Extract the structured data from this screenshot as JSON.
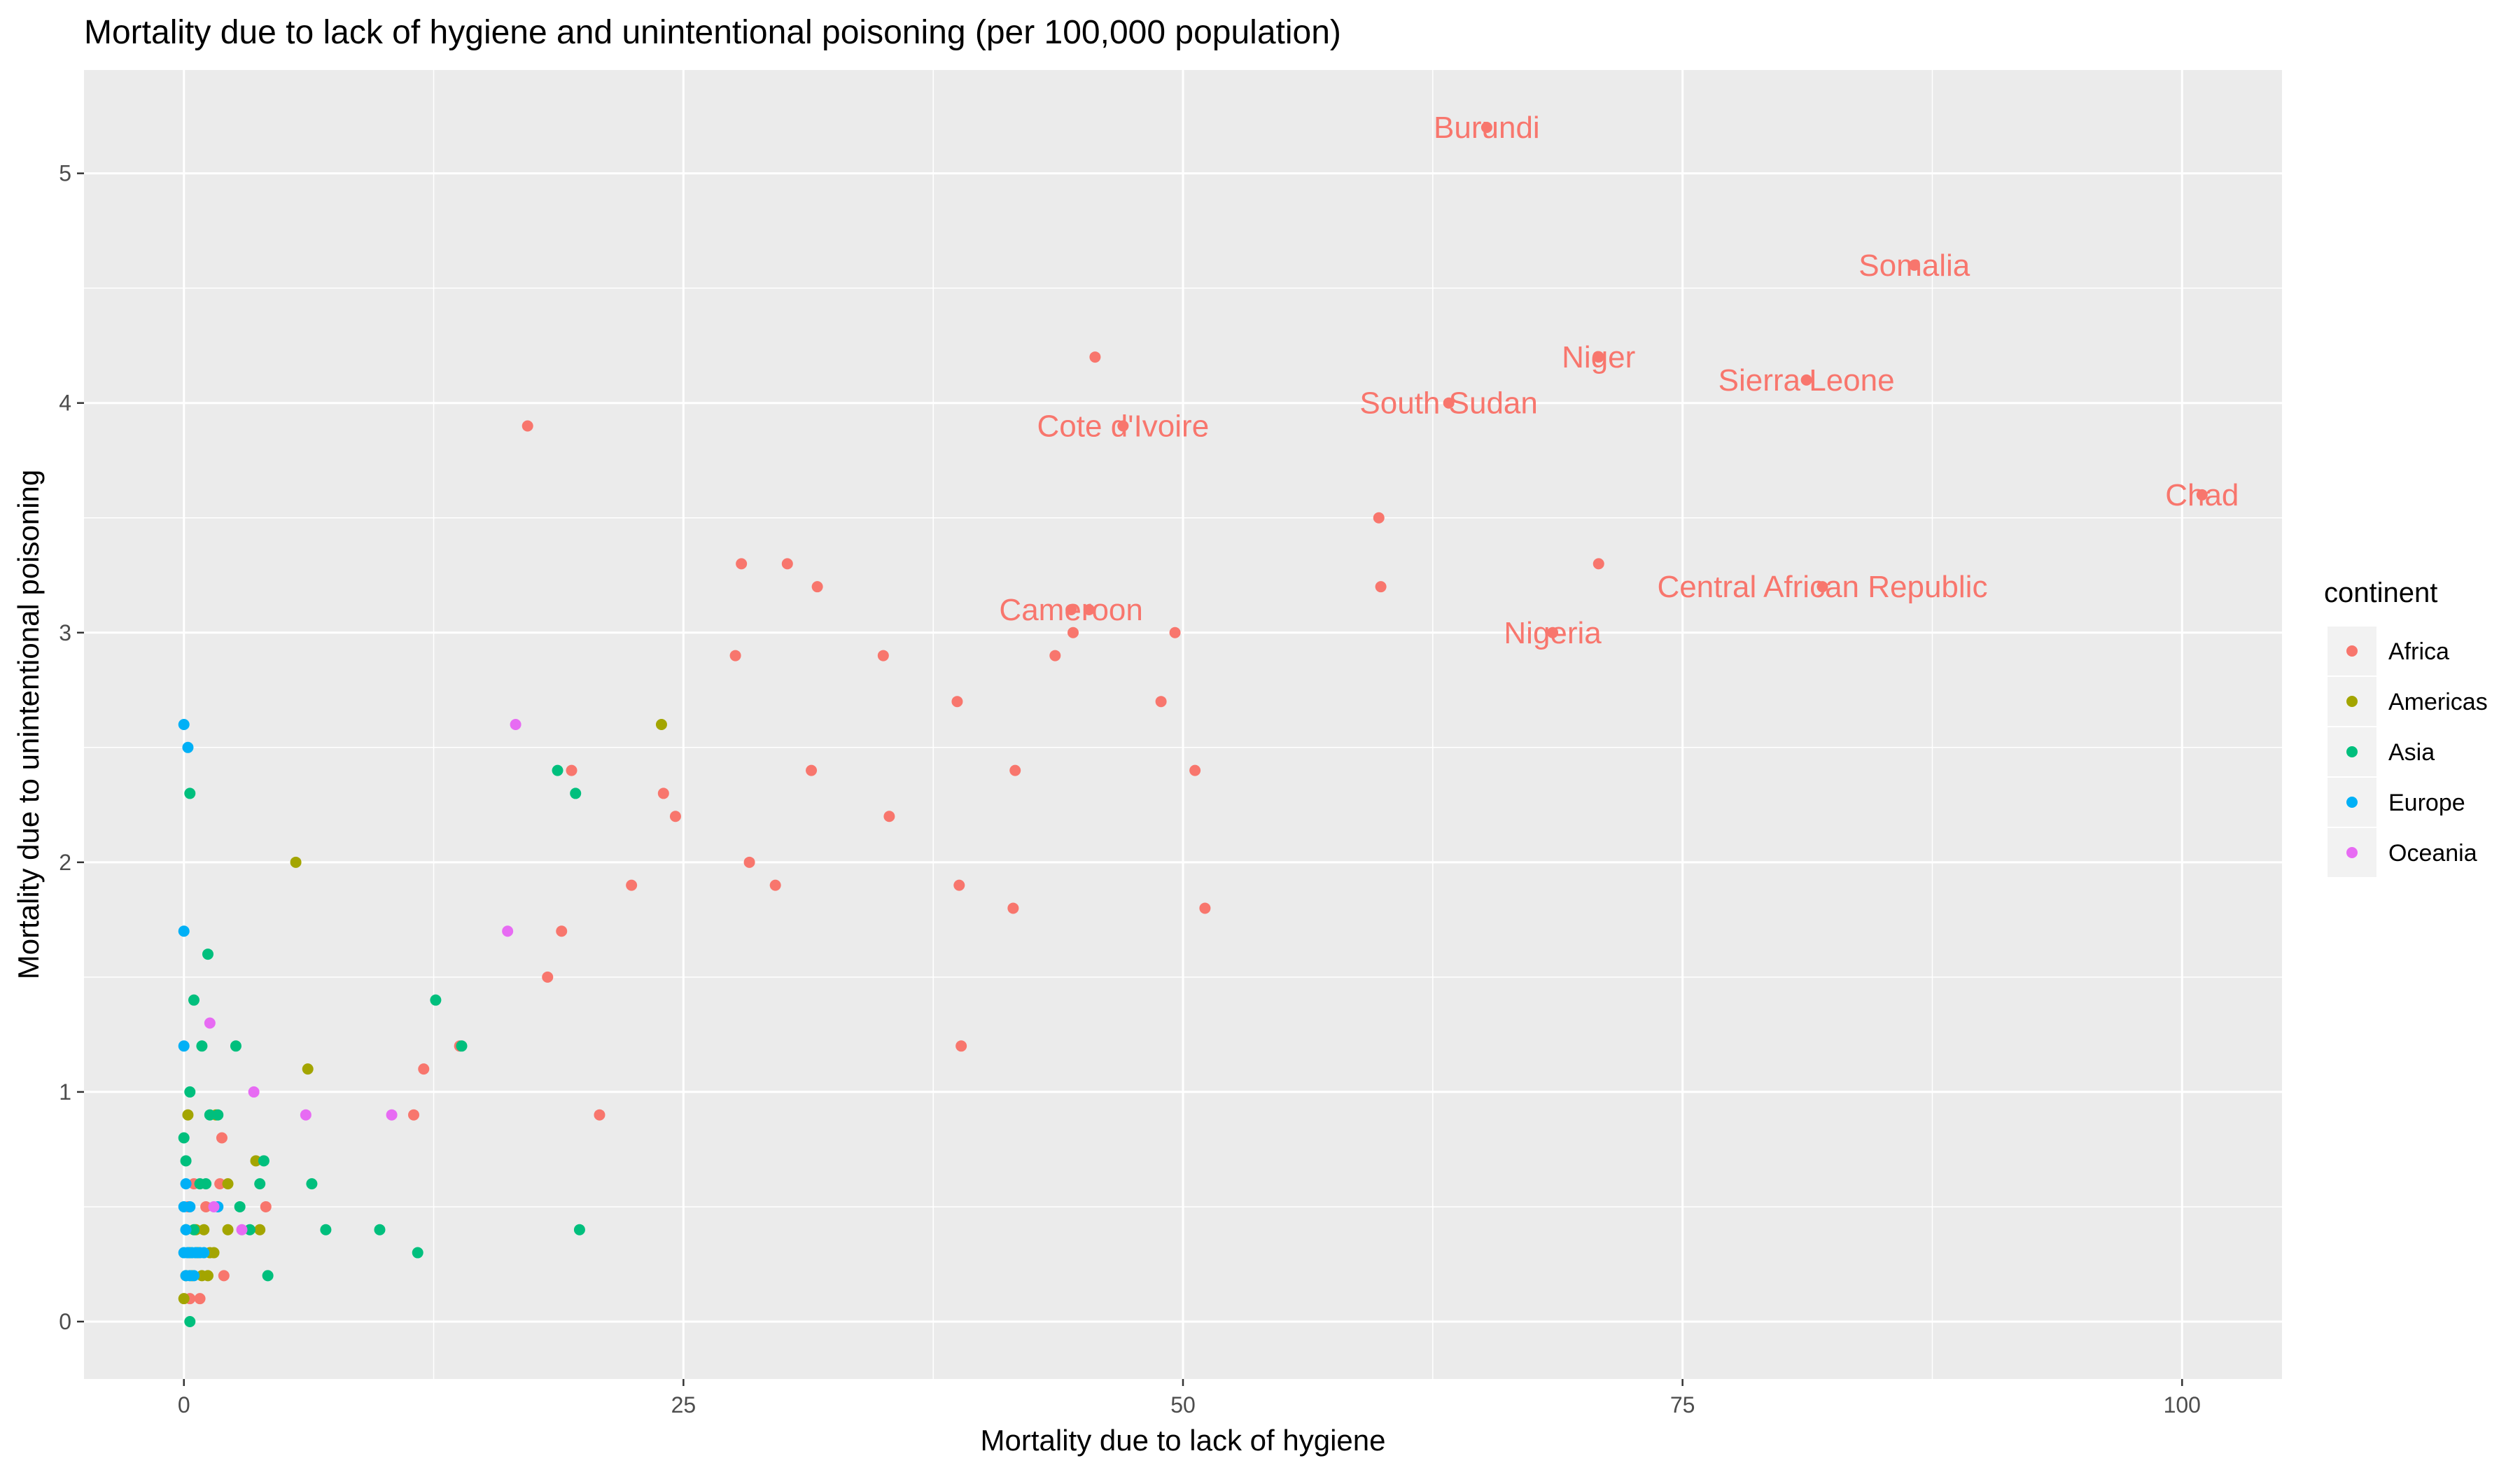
{
  "chart_data": {
    "type": "scatter",
    "title": "Mortality due to lack of hygiene and unintentional poisoning (per 100,000 population)",
    "xlabel": "Mortality due to lack of hygiene",
    "ylabel": "Mortality due to unintentional poisoning",
    "xlim": [
      -5,
      105
    ],
    "ylim": [
      -0.25,
      5.45
    ],
    "xticks": [
      0,
      25,
      50,
      75,
      100
    ],
    "yticks": [
      0,
      1,
      2,
      3,
      4,
      5
    ],
    "grid": true,
    "legend": {
      "title": "continent",
      "position": "right"
    },
    "series": [
      {
        "name": "Africa",
        "color": "#F8766D",
        "points": [
          [
            65.2,
            5.2
          ],
          [
            86.6,
            4.6
          ],
          [
            70.8,
            4.2
          ],
          [
            81.2,
            4.1
          ],
          [
            63.3,
            4.0
          ],
          [
            47.0,
            3.9
          ],
          [
            45.6,
            4.2
          ],
          [
            101.0,
            3.6
          ],
          [
            82.0,
            3.2
          ],
          [
            68.5,
            3.0
          ],
          [
            44.4,
            3.1
          ],
          [
            45.3,
            3.1
          ],
          [
            70.8,
            3.3
          ],
          [
            59.8,
            3.5
          ],
          [
            59.9,
            3.2
          ],
          [
            49.6,
            3.0
          ],
          [
            44.5,
            3.0
          ],
          [
            43.6,
            2.9
          ],
          [
            48.9,
            2.7
          ],
          [
            50.6,
            2.4
          ],
          [
            51.1,
            1.8
          ],
          [
            41.6,
            2.4
          ],
          [
            41.5,
            1.8
          ],
          [
            38.7,
            2.7
          ],
          [
            38.8,
            1.9
          ],
          [
            38.9,
            1.2
          ],
          [
            35.0,
            2.9
          ],
          [
            35.3,
            2.2
          ],
          [
            31.7,
            3.2
          ],
          [
            30.2,
            3.3
          ],
          [
            27.9,
            3.3
          ],
          [
            27.6,
            2.9
          ],
          [
            31.4,
            2.4
          ],
          [
            29.6,
            1.9
          ],
          [
            28.3,
            2.0
          ],
          [
            24.0,
            2.3
          ],
          [
            24.6,
            2.2
          ],
          [
            22.4,
            1.9
          ],
          [
            19.4,
            2.4
          ],
          [
            18.9,
            1.7
          ],
          [
            18.2,
            1.5
          ],
          [
            17.2,
            3.9
          ],
          [
            20.8,
            0.9
          ],
          [
            13.8,
            1.2
          ],
          [
            12.0,
            1.1
          ],
          [
            11.5,
            0.9
          ],
          [
            4.1,
            0.5
          ],
          [
            1.9,
            0.8
          ],
          [
            1.8,
            0.6
          ],
          [
            2.0,
            0.2
          ],
          [
            1.1,
            0.5
          ],
          [
            0.5,
            0.6
          ],
          [
            0.3,
            0.1
          ],
          [
            0.8,
            0.1
          ],
          [
            0.2,
            0.5
          ]
        ],
        "labels": [
          {
            "name": "Burundi",
            "x": 65.2,
            "y": 5.2
          },
          {
            "name": "Somalia",
            "x": 86.6,
            "y": 4.6
          },
          {
            "name": "Niger",
            "x": 70.8,
            "y": 4.2
          },
          {
            "name": "Sierra Leone",
            "x": 81.2,
            "y": 4.1
          },
          {
            "name": "South Sudan",
            "x": 63.3,
            "y": 4.0
          },
          {
            "name": "Cote d'Ivoire",
            "x": 47.0,
            "y": 3.9
          },
          {
            "name": "Chad",
            "x": 101.0,
            "y": 3.6
          },
          {
            "name": "Central African Republic",
            "x": 82.0,
            "y": 3.2
          },
          {
            "name": "Nigeria",
            "x": 68.5,
            "y": 3.0
          },
          {
            "name": "Cameroon",
            "x": 44.4,
            "y": 3.1
          }
        ]
      },
      {
        "name": "Americas",
        "color": "#A3A500",
        "points": [
          [
            23.9,
            2.6
          ],
          [
            5.6,
            2.0
          ],
          [
            6.2,
            1.1
          ],
          [
            3.6,
            0.7
          ],
          [
            3.8,
            0.4
          ],
          [
            2.2,
            0.6
          ],
          [
            2.2,
            0.4
          ],
          [
            1.6,
            0.9
          ],
          [
            1.3,
            0.3
          ],
          [
            1.0,
            0.4
          ],
          [
            0.9,
            0.2
          ],
          [
            0.6,
            0.4
          ],
          [
            0.4,
            0.2
          ],
          [
            0.2,
            0.9
          ],
          [
            0.1,
            0.2
          ],
          [
            0.0,
            0.1
          ],
          [
            1.2,
            0.2
          ],
          [
            0.7,
            0.3
          ],
          [
            0.3,
            0.3
          ],
          [
            1.5,
            0.3
          ]
        ]
      },
      {
        "name": "Asia",
        "color": "#00BF7D",
        "points": [
          [
            18.7,
            2.4
          ],
          [
            19.6,
            2.3
          ],
          [
            0.3,
            2.3
          ],
          [
            1.2,
            1.6
          ],
          [
            12.6,
            1.4
          ],
          [
            13.9,
            1.2
          ],
          [
            0.5,
            1.4
          ],
          [
            0.9,
            1.2
          ],
          [
            2.6,
            1.2
          ],
          [
            0.3,
            1.0
          ],
          [
            1.7,
            0.9
          ],
          [
            1.3,
            0.9
          ],
          [
            4.0,
            0.7
          ],
          [
            3.8,
            0.6
          ],
          [
            6.4,
            0.6
          ],
          [
            0.0,
            0.8
          ],
          [
            0.1,
            0.7
          ],
          [
            2.8,
            0.5
          ],
          [
            3.3,
            0.4
          ],
          [
            7.1,
            0.4
          ],
          [
            9.8,
            0.4
          ],
          [
            19.8,
            0.4
          ],
          [
            11.7,
            0.3
          ],
          [
            4.2,
            0.2
          ],
          [
            0.3,
            0.0
          ],
          [
            0.8,
            0.6
          ],
          [
            1.1,
            0.6
          ],
          [
            0.5,
            0.4
          ],
          [
            0.1,
            0.4
          ],
          [
            0.2,
            0.3
          ],
          [
            0.6,
            0.3
          ]
        ]
      },
      {
        "name": "Europe",
        "color": "#00B0F6",
        "points": [
          [
            0.0,
            2.6
          ],
          [
            0.2,
            2.5
          ],
          [
            0.0,
            1.7
          ],
          [
            0.0,
            1.2
          ],
          [
            0.1,
            0.6
          ],
          [
            0.3,
            0.5
          ],
          [
            0.0,
            0.5
          ],
          [
            0.1,
            0.4
          ],
          [
            0.2,
            0.3
          ],
          [
            0.4,
            0.3
          ],
          [
            0.6,
            0.3
          ],
          [
            0.8,
            0.3
          ],
          [
            0.0,
            0.3
          ],
          [
            1.0,
            0.3
          ],
          [
            0.1,
            0.2
          ],
          [
            0.3,
            0.2
          ],
          [
            0.5,
            0.2
          ],
          [
            1.7,
            0.5
          ]
        ]
      },
      {
        "name": "Oceania",
        "color": "#E76BF3",
        "points": [
          [
            16.6,
            2.6
          ],
          [
            16.2,
            1.7
          ],
          [
            1.3,
            1.3
          ],
          [
            3.5,
            1.0
          ],
          [
            6.1,
            0.9
          ],
          [
            10.4,
            0.9
          ],
          [
            1.5,
            0.5
          ],
          [
            2.9,
            0.4
          ]
        ]
      }
    ]
  }
}
